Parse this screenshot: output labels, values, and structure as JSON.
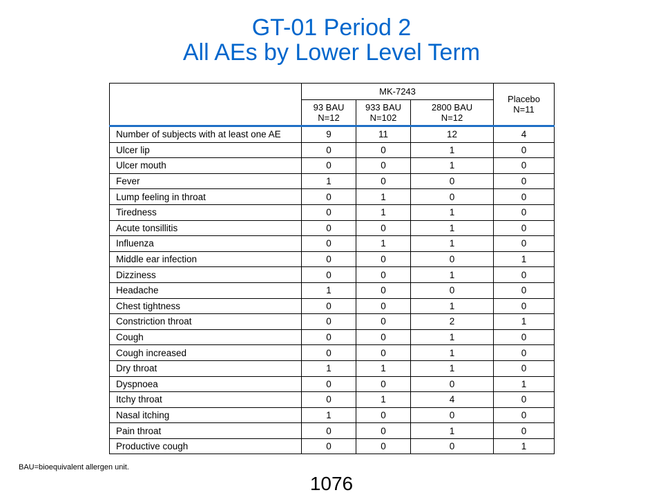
{
  "title": {
    "line1": "GT-01 Period 2",
    "line2": "All AEs by Lower Level Term"
  },
  "colors": {
    "title": "#0066CC",
    "header_rule": "#1F6FC5"
  },
  "table": {
    "group_header": "MK-7243",
    "columns": [
      {
        "line1": "93 BAU",
        "line2": "N=12"
      },
      {
        "line1": "933 BAU",
        "line2": "N=102"
      },
      {
        "line1": "2800 BAU",
        "line2": "N=12"
      }
    ],
    "placebo": {
      "line1": "Placebo",
      "line2": "N=11"
    },
    "rows": [
      {
        "term": "Number of subjects with at least one AE",
        "values": [
          "9",
          "11",
          "12",
          "4"
        ]
      },
      {
        "term": "Ulcer lip",
        "values": [
          "0",
          "0",
          "1",
          "0"
        ]
      },
      {
        "term": "Ulcer mouth",
        "values": [
          "0",
          "0",
          "1",
          "0"
        ]
      },
      {
        "term": "Fever",
        "values": [
          "1",
          "0",
          "0",
          "0"
        ]
      },
      {
        "term": "Lump feeling in throat",
        "values": [
          "0",
          "1",
          "0",
          "0"
        ]
      },
      {
        "term": "Tiredness",
        "values": [
          "0",
          "1",
          "1",
          "0"
        ]
      },
      {
        "term": "Acute tonsillitis",
        "values": [
          "0",
          "0",
          "1",
          "0"
        ]
      },
      {
        "term": "Influenza",
        "values": [
          "0",
          "1",
          "1",
          "0"
        ]
      },
      {
        "term": "Middle ear infection",
        "values": [
          "0",
          "0",
          "0",
          "1"
        ]
      },
      {
        "term": "Dizziness",
        "values": [
          "0",
          "0",
          "1",
          "0"
        ]
      },
      {
        "term": "Headache",
        "values": [
          "1",
          "0",
          "0",
          "0"
        ]
      },
      {
        "term": "Chest tightness",
        "values": [
          "0",
          "0",
          "1",
          "0"
        ]
      },
      {
        "term": "Constriction throat",
        "values": [
          "0",
          "0",
          "2",
          "1"
        ]
      },
      {
        "term": "Cough",
        "values": [
          "0",
          "0",
          "1",
          "0"
        ]
      },
      {
        "term": "Cough increased",
        "values": [
          "0",
          "0",
          "1",
          "0"
        ]
      },
      {
        "term": "Dry throat",
        "values": [
          "1",
          "1",
          "1",
          "0"
        ]
      },
      {
        "term": "Dyspnoea",
        "values": [
          "0",
          "0",
          "0",
          "1"
        ]
      },
      {
        "term": "Itchy throat",
        "values": [
          "0",
          "1",
          "4",
          "0"
        ]
      },
      {
        "term": "Nasal itching",
        "values": [
          "1",
          "0",
          "0",
          "0"
        ]
      },
      {
        "term": "Pain throat",
        "values": [
          "0",
          "0",
          "1",
          "0"
        ]
      },
      {
        "term": "Productive cough",
        "values": [
          "0",
          "0",
          "0",
          "1"
        ]
      }
    ]
  },
  "footnote": "BAU=bioequivalent  allergen unit.",
  "page_number": "1076"
}
